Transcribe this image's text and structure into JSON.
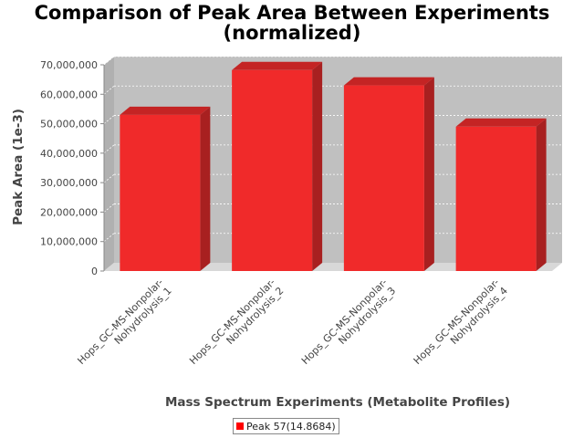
{
  "chart_data": {
    "type": "bar",
    "title_line1": "Comparison of Peak Area Between Experiments",
    "title_line2": "(normalized)",
    "xlabel": "Mass Spectrum Experiments (Metabolite Profiles)",
    "ylabel": "Peak Area (1e-3)",
    "categories": [
      "Hops_GC-MS-Nonpolar-Nohydrolysis_1",
      "Hops_GC-MS-Nonpolar-Nohydrolysis_2",
      "Hops_GC-MS-Nonpolar-Nohydrolysis_3",
      "Hops_GC-MS-Nonpolar-Nohydrolysis_4"
    ],
    "category_lines": [
      [
        "Hops_GC-MS-Nonpolar-",
        "Nohydrolysis_1"
      ],
      [
        "Hops_GC-MS-Nonpolar-",
        "Nohydrolysis_2"
      ],
      [
        "Hops_GC-MS-Nonpolar-",
        "Nohydrolysis_3"
      ],
      [
        "Hops_GC-MS-Nonpolar-",
        "Nohydrolysis_4"
      ]
    ],
    "series": [
      {
        "name": "Peak 57(14.8684)",
        "values": [
          53000000,
          68200000,
          63000000,
          49000000
        ]
      }
    ],
    "ylim": [
      0,
      70000000
    ],
    "yticks": [
      0,
      10000000,
      20000000,
      30000000,
      40000000,
      50000000,
      60000000,
      70000000
    ],
    "ytick_labels": [
      "0",
      "10,000,000",
      "20,000,000",
      "30,000,000",
      "40,000,000",
      "50,000,000",
      "60,000,000",
      "70,000,000"
    ],
    "grid": true,
    "legend_position": "bottom",
    "colors": {
      "bar_front": "#f02a2a",
      "bar_top": "#c42424",
      "bar_side": "#a82020",
      "plot_back": "#c0c0c0",
      "plot_wall": "#b0b0b0",
      "plot_floor": "#d8d8d8",
      "legend_swatch": "#ff0000"
    }
  }
}
